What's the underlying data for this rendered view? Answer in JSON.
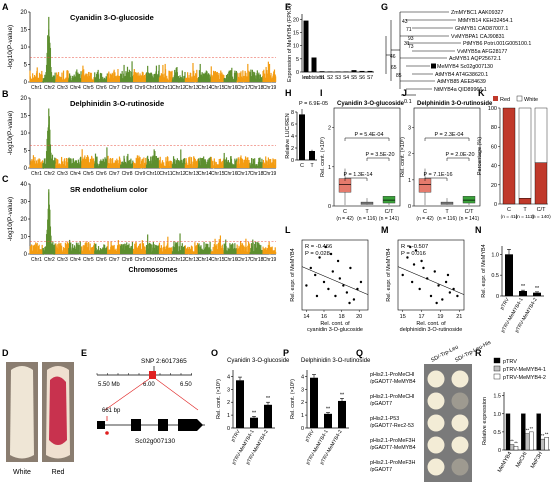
{
  "panel_letters": [
    "A",
    "B",
    "C",
    "D",
    "E",
    "F",
    "G",
    "H",
    "I",
    "J",
    "K",
    "L",
    "M",
    "N",
    "O",
    "P",
    "Q",
    "R"
  ],
  "colors": {
    "orange": "#f39c12",
    "green": "#5d8f2f",
    "threshold": "#e74c3c",
    "red_box": "#e57a6c",
    "grey_box": "#bdbdbd",
    "green_box": "#3aa23a",
    "sig_bar_grey": "#a0a0a0",
    "red_fruit": "#c0394b",
    "white_fruit": "#ece3d3"
  },
  "manhattan": {
    "chromosomes": [
      "Chr1",
      "Chr2",
      "Chr3",
      "Chr4",
      "Chr5",
      "Chr6",
      "Chr7",
      "Chr8",
      "Chr9",
      "Chr10",
      "Chr11",
      "Chr12",
      "Chr13",
      "Chr14",
      "Chr15",
      "Chr16",
      "Chr17",
      "Chr18",
      "Chr19"
    ],
    "xlabel": "Chromosomes",
    "ylabel": "-log10(P-value)",
    "panels": [
      {
        "title": "Cyanidin 3-O-glucoside",
        "ylim": [
          0,
          20
        ],
        "yticks": [
          0,
          5,
          10,
          15,
          20
        ],
        "threshold": 7.0,
        "peak_chr": "Chr2",
        "peak_value": 18.6
      },
      {
        "title": "Delphinidin 3-O-rutinoside",
        "ylim": [
          0,
          20
        ],
        "yticks": [
          0,
          5,
          10,
          15,
          20
        ],
        "threshold": 6.5,
        "peak_chr": "Chr2",
        "peak_value": 17.0
      },
      {
        "title": "SR endothelium color",
        "ylim": [
          0,
          40
        ],
        "yticks": [
          0,
          10,
          20,
          30,
          40
        ],
        "threshold": 7.0,
        "peak_chr": "Chr2",
        "peak_value": 37.0
      }
    ]
  },
  "panel_d": {
    "labels": [
      "White",
      "Red"
    ]
  },
  "panel_e": {
    "snp_label": "SNP 2:6017365",
    "axis_labels": [
      "5.50 Mb",
      "6.00",
      "6.50"
    ],
    "bp_label": "661 bp",
    "gene_label": "Sc02g007130"
  },
  "panel_f": {
    "ylabel": "Expression of MeMYB4 (FPKM)",
    "yticks": [
      0,
      5,
      10,
      15,
      20
    ],
    "chart_data": {
      "type": "bar",
      "categories": [
        "leaf",
        "rootstem",
        "S1",
        "S2",
        "S3",
        "S4",
        "S5",
        "S6",
        "S7"
      ],
      "values": [
        19.5,
        5.5,
        0.3,
        0.2,
        0.2,
        0.2,
        0.7,
        0.4,
        0.4
      ],
      "ylim": [
        0,
        22
      ]
    }
  },
  "panel_g": {
    "tree_labels": [
      "ZmMYBC1 AAK09327",
      "MtMYB14 KEH32454.1",
      "GhMYB1 CAD87007.1",
      "VvMYBPA1 CAJ90831",
      "PtMYB6 Potri.001G005100.1",
      "VvMYB5a AFG28177",
      "AcMYB1 AQP25672.1",
      "MeMYB4 Sc02g007130",
      "AtMYB4 AT4G38620.1",
      "AtMYB85 AEE84639",
      "NtMYB4a QID89966.1"
    ],
    "bootstrap": [
      "43",
      "71",
      "93",
      "31",
      "73",
      "46",
      "65",
      "85"
    ],
    "scale": "0.1"
  },
  "panel_h": {
    "pvalue": "P = 6.9E-05",
    "ylabel": "Relative LUC/REN",
    "yticks": [
      0,
      2,
      4,
      6,
      8
    ],
    "chart_data": {
      "type": "bar",
      "categories": [
        "C",
        "T"
      ],
      "values": [
        7.6,
        1.5
      ],
      "errors": [
        0.9,
        0.2
      ],
      "ylim": [
        0,
        8
      ]
    }
  },
  "panel_i": {
    "title": "Cyanidin 3-O-glucoside",
    "ylabel": "Rel. cont. (×10⁶)",
    "yticks": [
      "0",
      "1",
      "2"
    ],
    "pvalues": [
      "P = 5.4E-04",
      "P = 3.5E-20",
      "P = 1.3E-14"
    ],
    "categories": [
      "C",
      "T",
      "C/T"
    ],
    "ns": [
      "(n = 42)",
      "(n = 116)",
      "(n = 141)"
    ]
  },
  "panel_j": {
    "title": "Delphinidin 3-O-rutinoside",
    "ylabel": "Rel. cont. (×10⁶)",
    "yticks": [
      "0",
      "1",
      "2",
      "3"
    ],
    "pvalues": [
      "P = 2.3E-04",
      "P = 2.0E-20",
      "P = 7.1E-16"
    ],
    "categories": [
      "C",
      "T",
      "C/T"
    ],
    "ns": [
      "(n = 42)",
      "(n = 116)",
      "(n = 141)"
    ]
  },
  "panel_k": {
    "legend": [
      "Red",
      "White"
    ],
    "ylabel": "Percentage (%)",
    "yticks": [
      "0",
      "20",
      "40",
      "60",
      "80",
      "100"
    ],
    "chart_data": {
      "type": "bar",
      "categories": [
        "C",
        "T",
        "C/T"
      ],
      "ns": [
        "(n = 41)",
        "(n = 112)",
        "(n = 140)"
      ],
      "series": [
        {
          "name": "Red",
          "values": [
            100,
            6,
            43
          ]
        },
        {
          "name": "White",
          "values": [
            0,
            94,
            57
          ]
        }
      ],
      "ylim": [
        0,
        100
      ]
    }
  },
  "panel_l": {
    "r": "R = -0.466",
    "p": "P = 0.028",
    "ylabel": "Rel. expr. of MeMYB4",
    "xlabel": "Rel. cont. of cyanidin 3-O-glucoside",
    "xticks": [
      "14",
      "16",
      "18",
      "20"
    ],
    "chart_data": {
      "type": "scatter",
      "x": [
        14.0,
        14.5,
        15.0,
        15.5,
        16.0,
        16.2,
        16.5,
        17.0,
        17.3,
        17.8,
        18.2,
        18.6,
        19.0,
        19.4,
        19.8,
        20.2,
        15.2,
        17.6,
        18.9,
        16.8
      ],
      "y": [
        0.35,
        0.6,
        0.5,
        0.75,
        0.4,
        0.9,
        0.3,
        0.55,
        0.2,
        0.45,
        0.35,
        0.25,
        0.6,
        0.15,
        0.3,
        0.4,
        0.2,
        0.7,
        0.1,
        0.8
      ],
      "xlim": [
        13.5,
        21
      ],
      "ylim": [
        0,
        1
      ]
    }
  },
  "panel_m": {
    "r": "R = -0.507",
    "p": "P = 0.016",
    "ylabel": "Rel. expr. of MeMYB4",
    "xlabel": "Rel. cont. of delphinidin 3-O-rutinoside",
    "xticks": [
      "15",
      "17",
      "19",
      "21"
    ],
    "chart_data": {
      "type": "scatter",
      "x": [
        15.0,
        15.5,
        16.0,
        16.4,
        16.8,
        17.2,
        17.6,
        18.0,
        18.4,
        18.8,
        19.2,
        19.6,
        20.0,
        20.4,
        15.8,
        17.0,
        18.6,
        19.8,
        16.2,
        20.8
      ],
      "y": [
        0.5,
        0.75,
        0.4,
        0.85,
        0.3,
        0.6,
        0.45,
        0.2,
        0.55,
        0.35,
        0.15,
        0.4,
        0.25,
        0.3,
        0.9,
        0.7,
        0.1,
        0.5,
        0.65,
        0.2
      ],
      "xlim": [
        14.5,
        21.5
      ],
      "ylim": [
        0,
        1
      ]
    }
  },
  "panel_n": {
    "ylabel": "Rel. expr. of MeMYB4",
    "yticks": [
      "0",
      "0.5",
      "1.0"
    ],
    "chart_data": {
      "type": "bar",
      "categories": [
        "pTRV",
        "pTRV-MeMYB4-1",
        "pTRV-MeMYB4-2"
      ],
      "values": [
        1.0,
        0.12,
        0.08
      ],
      "errors": [
        0.12,
        0.02,
        0.02
      ],
      "ylim": [
        0,
        1.2
      ]
    },
    "sig": [
      "**",
      "**"
    ]
  },
  "panel_o": {
    "title": "Cyanidin 3-O-glucoside",
    "ylabel": "Rel. cont. (×10⁶)",
    "yticks": [
      "0",
      "1",
      "2",
      "3",
      "4"
    ],
    "chart_data": {
      "type": "bar",
      "categories": [
        "pTRV",
        "pTRV-MeMYB4-1",
        "pTRV-MeMYB4-2"
      ],
      "values": [
        3.7,
        0.8,
        1.8
      ],
      "errors": [
        0.25,
        0.1,
        0.2
      ],
      "ylim": [
        0,
        4.5
      ]
    },
    "sig": [
      "**",
      "**"
    ]
  },
  "panel_p": {
    "title": "Delphinidin 3-O-rutinoside",
    "ylabel": "Rel. cont. (×10⁶)",
    "yticks": [
      "0",
      "1",
      "2",
      "3",
      "4"
    ],
    "chart_data": {
      "type": "bar",
      "categories": [
        "pTRV",
        "pTRV-MeMYB4-1",
        "pTRV-MeMYB4-2"
      ],
      "values": [
        3.9,
        1.1,
        2.1
      ],
      "errors": [
        0.25,
        0.1,
        0.2
      ],
      "ylim": [
        0,
        4.5
      ]
    },
    "sig": [
      "**",
      "**"
    ]
  },
  "panel_q": {
    "columns": [
      "SD/-Trp-Leu",
      "SD/-Trp-Leu-His"
    ],
    "rows": [
      [
        "pHis2.1-ProMeCHI",
        "/pGADT7-MeMYB4"
      ],
      [
        "pHis2.1-ProMeCHI",
        "/pGADT7"
      ],
      [
        "pHis2.1-P53",
        "/pGADT7-Rec2-53"
      ],
      [
        "pHis2.1-ProMeF3H",
        "/pGADT7-MeMYB4"
      ],
      [
        "pHis2.1-ProMeF3H",
        "/pGADT7"
      ]
    ]
  },
  "panel_r": {
    "legend": [
      "pTRV",
      "pTRV-MeMYB4-1",
      "pTRV-MeMYB4-2"
    ],
    "ylabel": "Relative expression",
    "yticks": [
      "0",
      "0.5",
      "1.0",
      "1.5"
    ],
    "chart_data": {
      "type": "bar",
      "categories": [
        "MeMYB4",
        "MeCHI",
        "MeF3H"
      ],
      "series": [
        {
          "name": "pTRV",
          "values": [
            1.0,
            1.0,
            1.0
          ]
        },
        {
          "name": "pTRV-MeMYB4-1",
          "values": [
            0.15,
            0.45,
            0.3
          ]
        },
        {
          "name": "pTRV-MeMYB4-2",
          "values": [
            0.1,
            0.5,
            0.35
          ]
        }
      ],
      "ylim": [
        0,
        1.6
      ]
    },
    "sig": "**"
  }
}
